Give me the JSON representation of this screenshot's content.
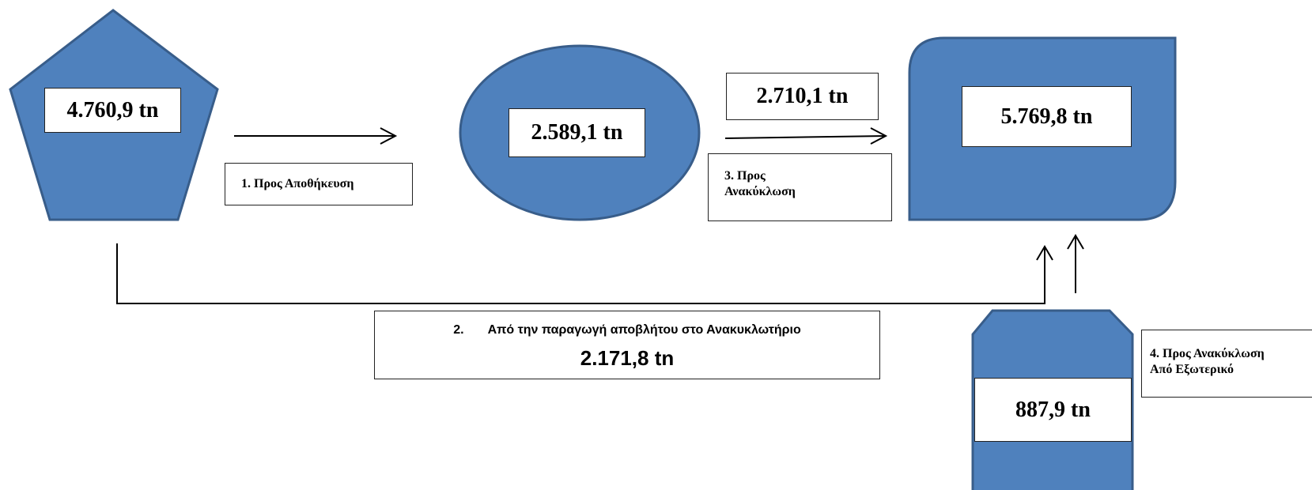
{
  "colors": {
    "shape_fill": "#4f81bd",
    "shape_stroke": "#385d8a",
    "line": "#000000"
  },
  "nodes": {
    "pentagon": {
      "value": "4.760,9 tn"
    },
    "ellipse": {
      "value": "2.589,1 tn"
    },
    "rounded_rect": {
      "value": "5.769,8 tn"
    },
    "octagon": {
      "value": "887,9 tn"
    }
  },
  "flows": {
    "flow1": {
      "label": "1. Προς Αποθήκευση"
    },
    "flow2": {
      "number": "2.",
      "label": "Από την παραγωγή αποβλήτου στο Ανακυκλωτήριο",
      "value": "2.171,8 tn"
    },
    "flow3": {
      "label_line1": "3. Προς",
      "label_line2": "Ανακύκλωση",
      "value": "2.710,1 tn"
    },
    "flow4": {
      "label_line1": "4. Προς Ανακύκλωση",
      "label_line2": "Από Εξωτερικό"
    }
  }
}
